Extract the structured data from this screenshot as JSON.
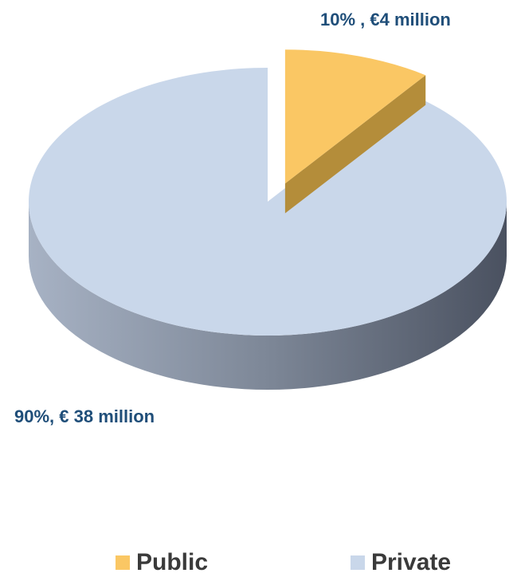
{
  "chart_data": {
    "type": "pie",
    "title": "",
    "series": [
      {
        "name": "Public",
        "percent": 10,
        "label": "10%  , €4 million",
        "color": "#fac764",
        "side_color": "#b48d3a"
      },
      {
        "name": "Private",
        "percent": 90,
        "label": "90%, € 38 million",
        "color": "#c9d7ea",
        "side_dark": "#4a5160",
        "side_light": "#a7b2c4"
      }
    ],
    "three_d": true,
    "legend_position": "bottom"
  },
  "legend": {
    "items": [
      {
        "label": "Public",
        "color": "#fac764"
      },
      {
        "label": "Private",
        "color": "#c9d7ea"
      }
    ]
  }
}
